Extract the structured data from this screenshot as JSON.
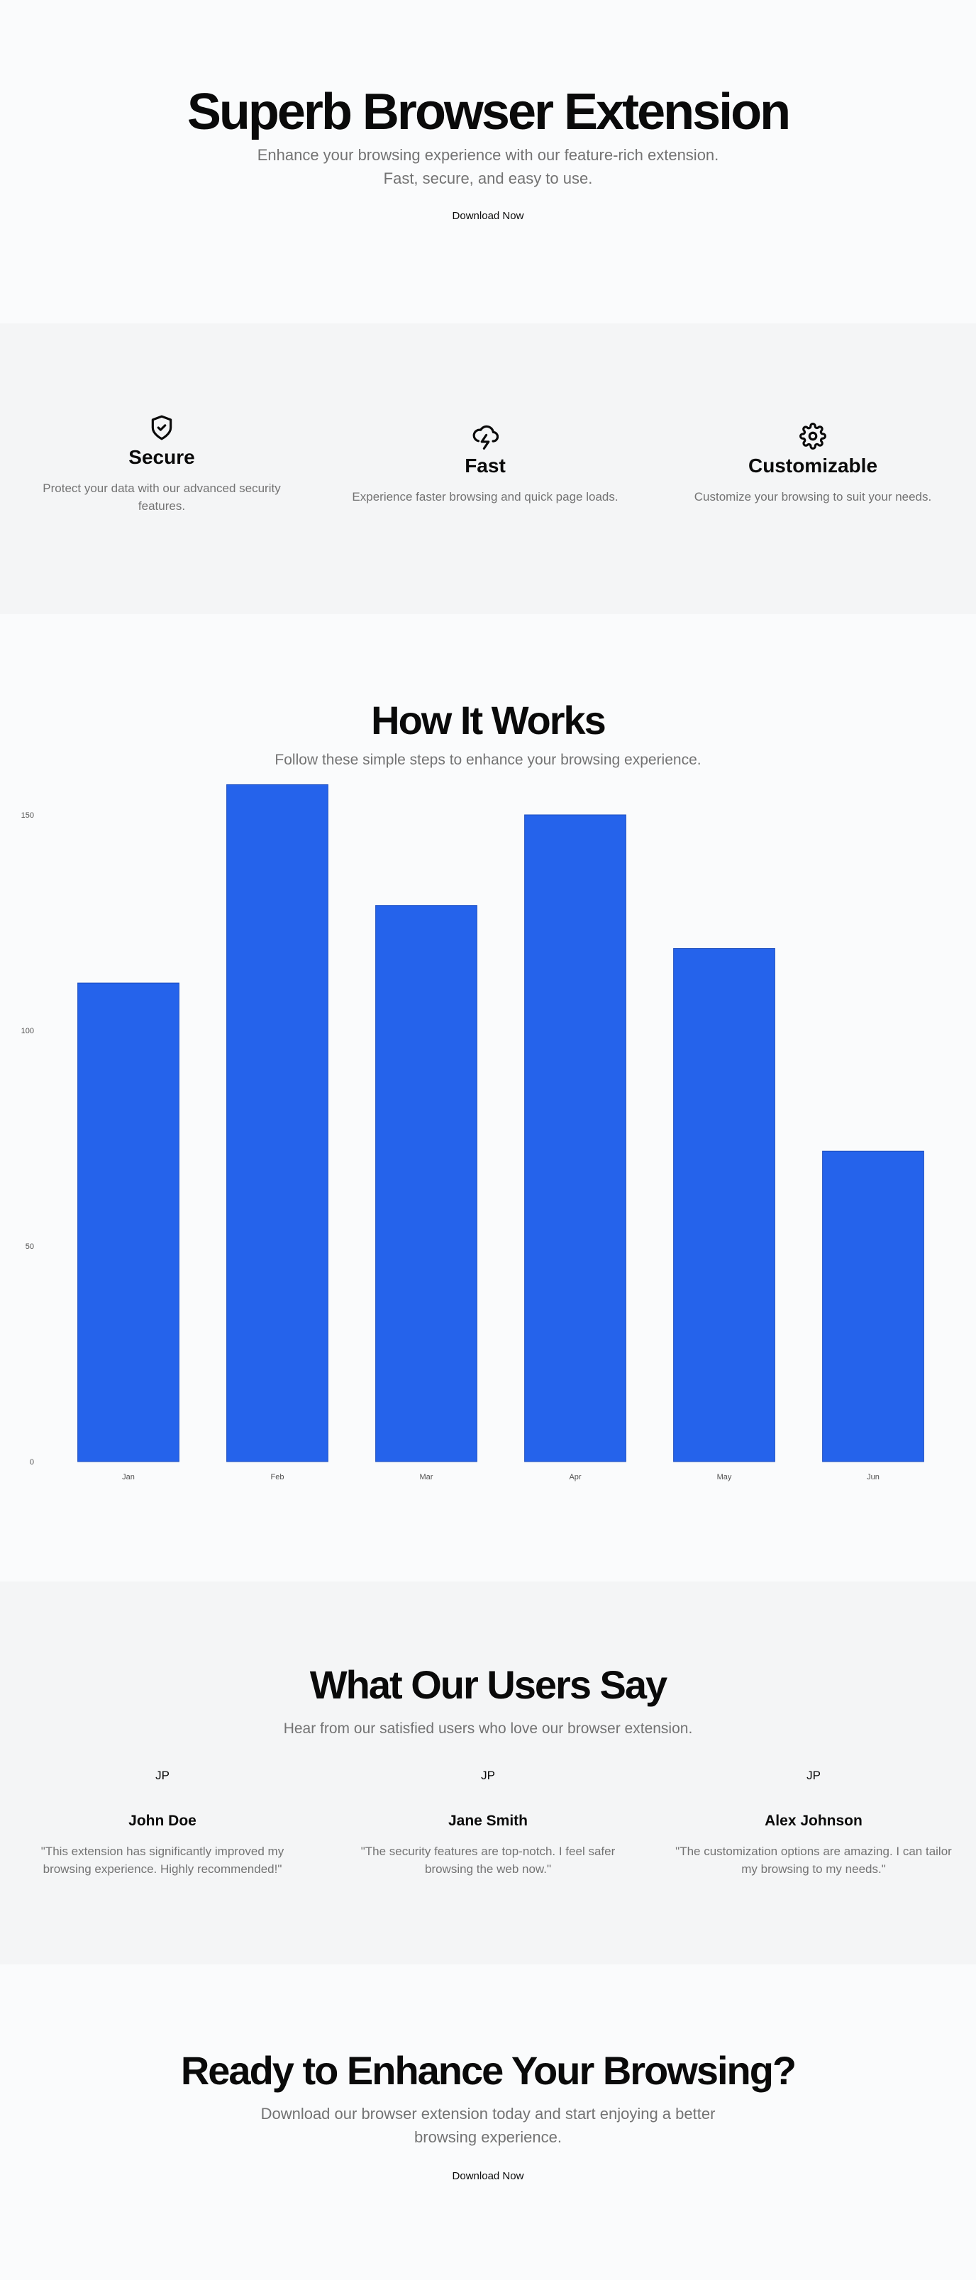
{
  "hero": {
    "title": "Superb Browser Extension",
    "subtitle": "Enhance your browsing experience with our feature-rich extension. Fast, secure, and easy to use.",
    "cta_label": "Download Now"
  },
  "features": [
    {
      "icon": "shield-check-icon",
      "title": "Secure",
      "description": "Protect your data with our advanced security features."
    },
    {
      "icon": "cloud-lightning-icon",
      "title": "Fast",
      "description": "Experience faster browsing and quick page loads."
    },
    {
      "icon": "gear-icon",
      "title": "Customizable",
      "description": "Customize your browsing to suit your needs."
    }
  ],
  "how": {
    "title": "How It Works",
    "subtitle": "Follow these simple steps to enhance your browsing experience."
  },
  "chart_data": {
    "type": "bar",
    "categories": [
      "Jan",
      "Feb",
      "Mar",
      "Apr",
      "May",
      "Jun"
    ],
    "values": [
      111,
      157,
      129,
      150,
      119,
      72
    ],
    "ylim": [
      0,
      150
    ],
    "yticks": [
      0,
      50,
      100,
      150
    ],
    "bar_color": "#2563eb",
    "grid": false,
    "title": "",
    "xlabel": "",
    "ylabel": ""
  },
  "testimonials": {
    "title": "What Our Users Say",
    "subtitle": "Hear from our satisfied users who love our browser extension.",
    "items": [
      {
        "avatar": "JP",
        "name": "John Doe",
        "quote": "\"This extension has significantly improved my browsing experience. Highly recommended!\""
      },
      {
        "avatar": "JP",
        "name": "Jane Smith",
        "quote": "\"The security features are top-notch. I feel safer browsing the web now.\""
      },
      {
        "avatar": "JP",
        "name": "Alex Johnson",
        "quote": "\"The customization options are amazing. I can tailor my browsing to my needs.\""
      }
    ]
  },
  "cta": {
    "title": "Ready to Enhance Your Browsing?",
    "subtitle": "Download our browser extension today and start enjoying a better browsing experience.",
    "cta_label": "Download Now"
  },
  "colors": {
    "accent": "#2563eb",
    "text": "#0a0a0a",
    "muted": "#737373",
    "bg": "#fafbfc",
    "alt_bg": "#f4f5f6"
  }
}
